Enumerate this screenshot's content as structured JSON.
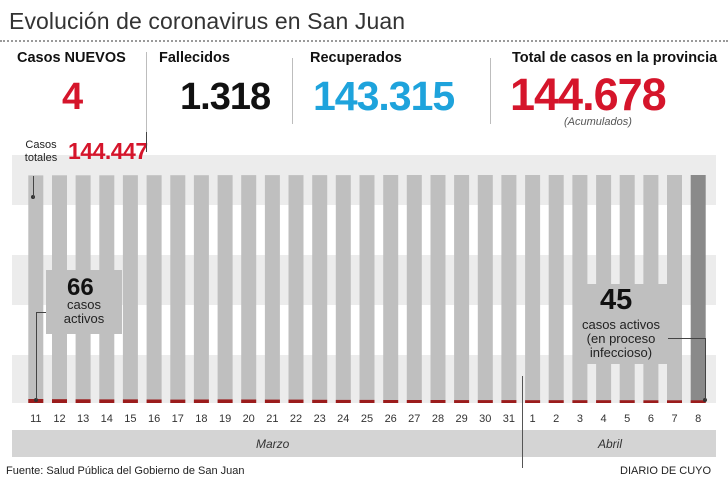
{
  "title": "Evolución de coronavirus en San Juan",
  "stats": {
    "nuevos": {
      "label": "Casos NUEVOS",
      "value": "4"
    },
    "fallecidos": {
      "label": "Fallecidos",
      "value": "1.318"
    },
    "recuperados": {
      "label": "Recuperados",
      "value": "143.315"
    },
    "total": {
      "label": "Total de casos en la provincia",
      "value": "144.678",
      "note": "(Acumulados)"
    }
  },
  "colors": {
    "red": "#d5152b",
    "blue": "#1ea3dc",
    "bar": "#bfbfbf",
    "bar_last": "#8a8a8a",
    "active": "#9b1c1c"
  },
  "totales": {
    "label_line1": "Casos",
    "label_line2": "totales",
    "value": "144.447"
  },
  "callouts": {
    "first": {
      "number": "66",
      "line1": "casos",
      "line2": "activos"
    },
    "last": {
      "number": "45",
      "line1": "casos activos",
      "line2": "(en proceso",
      "line3": "infeccioso)"
    }
  },
  "months": {
    "march": "Marzo",
    "april": "Abril"
  },
  "footer": {
    "source": "Fuente: Salud Pública del Gobierno de San Juan",
    "brand": "DIARIO DE CUYO"
  },
  "chart_data": {
    "type": "bar",
    "categories": [
      "11",
      "12",
      "13",
      "14",
      "15",
      "16",
      "17",
      "18",
      "19",
      "20",
      "21",
      "22",
      "23",
      "24",
      "25",
      "26",
      "27",
      "28",
      "29",
      "30",
      "31",
      "1",
      "2",
      "3",
      "4",
      "5",
      "6",
      "7",
      "8"
    ],
    "series": [
      {
        "values": [
          144447,
          144460,
          144480,
          144500,
          144520,
          144540,
          144560,
          144575,
          144590,
          144600,
          144610,
          144620,
          144628,
          144636,
          144644,
          144650,
          144656,
          144660,
          144664,
          144667,
          144669,
          144671,
          144672,
          144673,
          144674,
          144675,
          144676,
          144677,
          144678
        ]
      },
      {
        "values": [
          66,
          64,
          62,
          60,
          60,
          58,
          56,
          58,
          60,
          58,
          56,
          56,
          54,
          52,
          52,
          50,
          50,
          50,
          48,
          48,
          48,
          47,
          47,
          46,
          46,
          46,
          45,
          45,
          45
        ]
      }
    ],
    "ylim": [
      0,
      144678
    ]
  }
}
